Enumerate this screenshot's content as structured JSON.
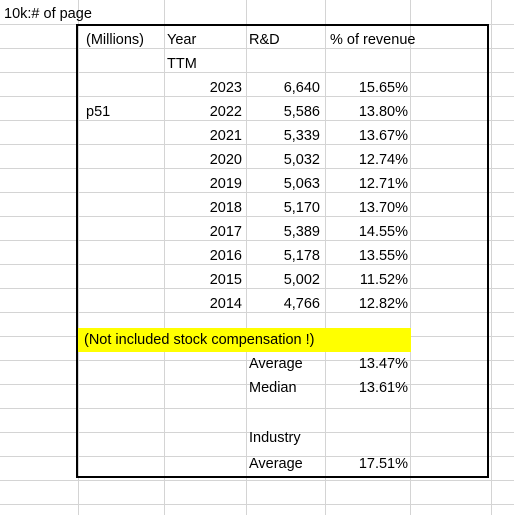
{
  "sheet": {
    "note": "10k:# of page",
    "page_ref": "p51",
    "headers": {
      "millions": "(Millions)",
      "year": "Year",
      "rd": "R&D",
      "pct": "% of revenue"
    },
    "ttm": "TTM",
    "rows": [
      {
        "year": "2023",
        "rd": "6,640",
        "pct": "15.65%"
      },
      {
        "year": "2022",
        "rd": "5,586",
        "pct": "13.80%"
      },
      {
        "year": "2021",
        "rd": "5,339",
        "pct": "13.67%"
      },
      {
        "year": "2020",
        "rd": "5,032",
        "pct": "12.74%"
      },
      {
        "year": "2019",
        "rd": "5,063",
        "pct": "12.71%"
      },
      {
        "year": "2018",
        "rd": "5,170",
        "pct": "13.70%"
      },
      {
        "year": "2017",
        "rd": "5,389",
        "pct": "14.55%"
      },
      {
        "year": "2016",
        "rd": "5,178",
        "pct": "13.55%"
      },
      {
        "year": "2015",
        "rd": "5,002",
        "pct": "11.52%"
      },
      {
        "year": "2014",
        "rd": "4,766",
        "pct": "12.82%"
      }
    ],
    "stock_note": "(Not included stock compensation !)",
    "average_label": "Average",
    "average_value": "13.47%",
    "median_label": "Median",
    "median_value": "13.61%",
    "industry_label": "Industry",
    "industry_average_label": "Average",
    "industry_average_value": "17.51%",
    "colors": {
      "highlight": "#ffff00",
      "gridline": "#d4d4d4",
      "border": "#000000"
    }
  }
}
